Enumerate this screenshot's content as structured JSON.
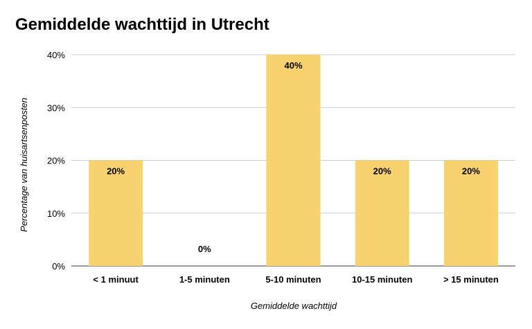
{
  "chart_data": {
    "type": "bar",
    "title": "Gemiddelde wachttijd in Utrecht",
    "xlabel": "Gemiddelde wachttijd",
    "ylabel": "Percentage van huisartsenposten",
    "categories": [
      "< 1 minuut",
      "1-5 minuten",
      "5-10 minuten",
      "10-15 minuten",
      "> 15 minuten"
    ],
    "values": [
      20,
      0,
      40,
      20,
      20
    ],
    "data_labels": [
      "20%",
      "0%",
      "40%",
      "20%",
      "20%"
    ],
    "ylim": [
      0,
      40
    ],
    "yticks": [
      0,
      10,
      20,
      30,
      40
    ],
    "ytick_labels": [
      "0%",
      "10%",
      "20%",
      "30%",
      "40%"
    ],
    "bar_color": "#f7d26f",
    "grid": true,
    "legend": "none"
  }
}
